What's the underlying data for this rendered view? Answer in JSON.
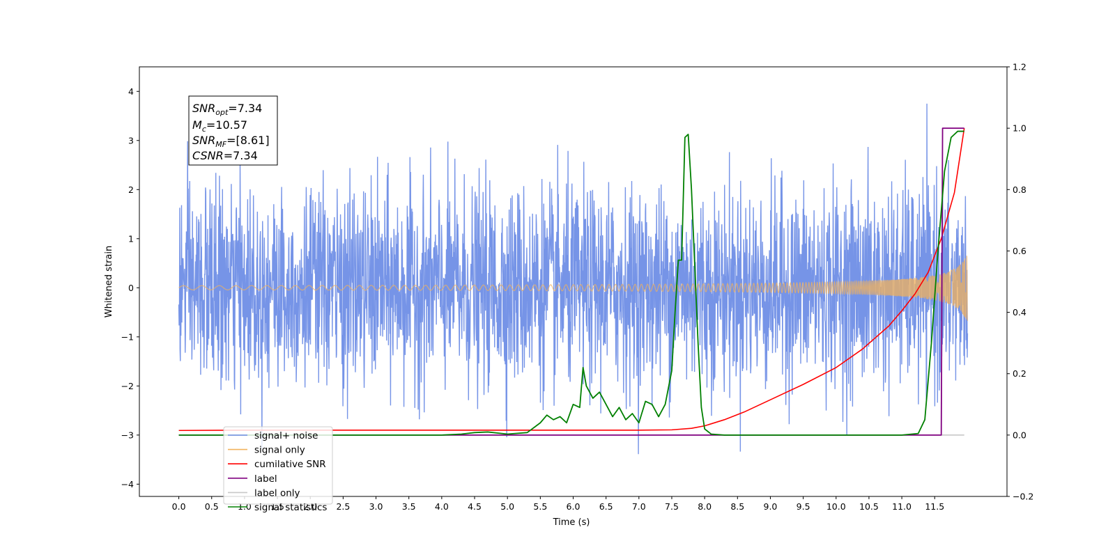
{
  "chart_data": {
    "type": "line",
    "xlabel": "Time (s)",
    "ylabel": "Whitened strain",
    "xlim": [
      -0.6,
      12.6
    ],
    "ylim": [
      -4.25,
      4.5
    ],
    "ylim_right": [
      -0.2,
      1.2
    ],
    "x_ticks": [
      "0.0",
      "0.5",
      "1.0",
      "1.5",
      "2.0",
      "2.5",
      "3.0",
      "3.5",
      "4.0",
      "4.5",
      "5.0",
      "5.5",
      "6.0",
      "6.5",
      "7.0",
      "7.5",
      "8.0",
      "8.5",
      "9.0",
      "9.5",
      "10.0",
      "10.5",
      "11.0",
      "11.5"
    ],
    "y_ticks_left": [
      "4",
      "3",
      "2",
      "1",
      "0",
      "−1",
      "−2",
      "−3",
      "−4"
    ],
    "y_ticks_right": [
      "1.2",
      "1.0",
      "0.8",
      "0.6",
      "0.4",
      "0.2",
      "0.0",
      "−0.2"
    ],
    "grid": false,
    "legend_placement": "lower-left",
    "info_box": {
      "lines": [
        {
          "main": "SNR",
          "sub": "opt",
          "value": "=7.34"
        },
        {
          "main": "M",
          "sub": "c",
          "value": "=10.57"
        },
        {
          "main": "SNR",
          "sub": "MF",
          "value": "=[8.61]"
        },
        {
          "main": "CSNR",
          "sub": "",
          "value": "=7.34"
        }
      ]
    },
    "series": [
      {
        "name": "signal+ noise",
        "axis": "left",
        "color": "#6f8ee6",
        "description_range": [
          -3.8,
          4.1
        ],
        "x_start": 0.0,
        "x_end": 12.0,
        "noise_std": 1.0
      },
      {
        "name": "signal only",
        "axis": "left",
        "color": "#f2b25c",
        "chirp": {
          "start_freq": 6,
          "end_freq": 80,
          "end_amplitude": 0.75,
          "t_merge": 12.0
        }
      },
      {
        "name": "cumilative SNR",
        "axis": "right",
        "color": "#ff0000",
        "x": [
          0.0,
          1.0,
          2.0,
          3.0,
          4.0,
          5.0,
          6.0,
          7.0,
          7.5,
          7.8,
          8.0,
          8.3,
          8.6,
          9.0,
          9.5,
          10.0,
          10.4,
          10.8,
          11.0,
          11.2,
          11.4,
          11.6,
          11.8,
          11.95
        ],
        "values": [
          0.015,
          0.016,
          0.016,
          0.016,
          0.016,
          0.016,
          0.016,
          0.016,
          0.017,
          0.022,
          0.03,
          0.05,
          0.075,
          0.115,
          0.165,
          0.22,
          0.28,
          0.355,
          0.405,
          0.46,
          0.53,
          0.64,
          0.79,
          1.0
        ]
      },
      {
        "name": "label only",
        "axis": "right",
        "color": "#c8c8c8",
        "x": [
          0.0,
          11.95
        ],
        "values": [
          0.0,
          0.0
        ]
      },
      {
        "name": "label",
        "axis": "right",
        "color": "#800080",
        "x": [
          0.0,
          11.6,
          11.62,
          11.95
        ],
        "values": [
          0.0,
          0.0,
          1.0,
          1.0
        ]
      },
      {
        "name": "signal statistics",
        "axis": "right",
        "color": "#008000",
        "x": [
          0.0,
          1.0,
          2.0,
          3.0,
          4.0,
          4.3,
          4.5,
          4.7,
          5.0,
          5.3,
          5.5,
          5.6,
          5.7,
          5.8,
          5.9,
          6.0,
          6.1,
          6.15,
          6.2,
          6.3,
          6.4,
          6.5,
          6.6,
          6.7,
          6.8,
          6.9,
          7.0,
          7.1,
          7.2,
          7.3,
          7.4,
          7.5,
          7.55,
          7.6,
          7.65,
          7.7,
          7.75,
          7.8,
          7.9,
          7.95,
          8.0,
          8.1,
          8.3,
          9.0,
          10.0,
          11.0,
          11.25,
          11.35,
          11.45,
          11.55,
          11.65,
          11.75,
          11.85,
          11.95
        ],
        "values": [
          0.0,
          0.0,
          0.0,
          0.0,
          0.0,
          0.003,
          0.008,
          0.01,
          0.003,
          0.008,
          0.04,
          0.065,
          0.05,
          0.06,
          0.04,
          0.1,
          0.09,
          0.22,
          0.16,
          0.12,
          0.14,
          0.1,
          0.06,
          0.09,
          0.05,
          0.07,
          0.04,
          0.11,
          0.1,
          0.06,
          0.1,
          0.21,
          0.4,
          0.57,
          0.57,
          0.97,
          0.98,
          0.8,
          0.3,
          0.09,
          0.02,
          0.003,
          0.0,
          0.0,
          0.0,
          0.0,
          0.005,
          0.05,
          0.3,
          0.6,
          0.86,
          0.97,
          0.99,
          0.99
        ]
      }
    ]
  }
}
